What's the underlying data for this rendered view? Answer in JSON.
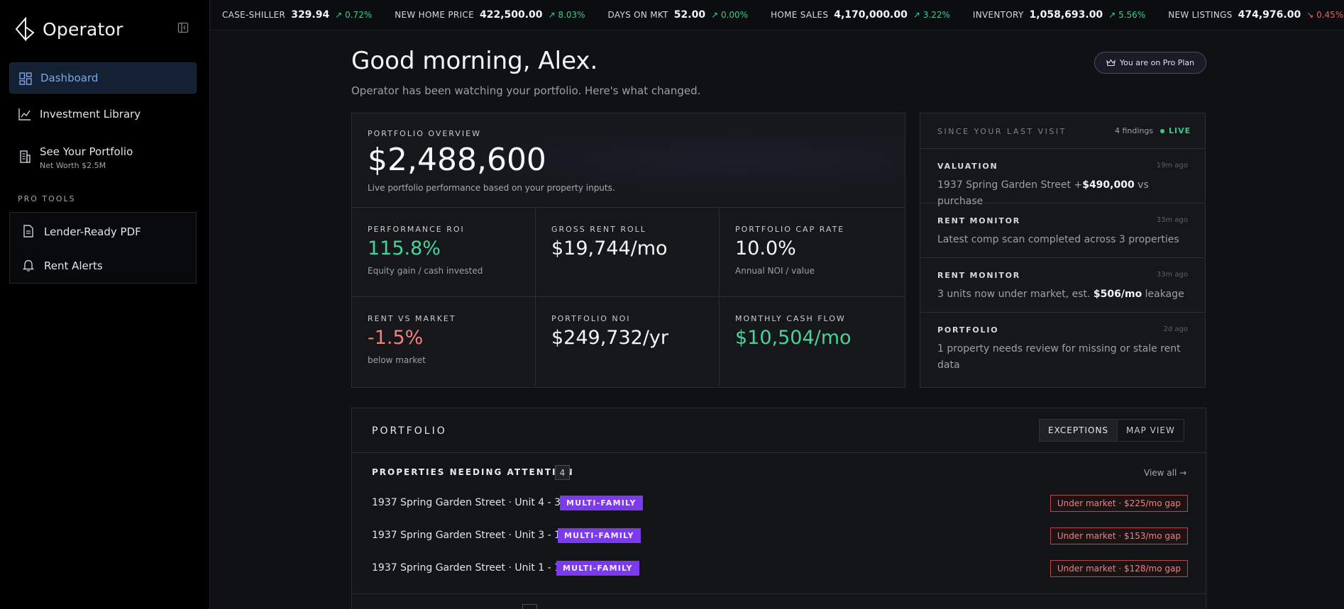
{
  "app": {
    "name": "Operator"
  },
  "sidebar": {
    "items": [
      {
        "label": "Dashboard",
        "icon": "dashboard-icon"
      },
      {
        "label": "Investment Library",
        "icon": "chart-line-icon"
      },
      {
        "label": "See Your Portfolio",
        "sub": "Net Worth $2.5M",
        "icon": "building-icon"
      }
    ],
    "pro_tools_title": "PRO TOOLS",
    "pro_tools": [
      {
        "label": "Lender-Ready PDF",
        "icon": "document-icon"
      },
      {
        "label": "Rent Alerts",
        "icon": "bell-icon"
      }
    ]
  },
  "ticker": [
    {
      "name": "CASE-SHILLER",
      "value": "329.94",
      "change": "0.72%",
      "direction": "up"
    },
    {
      "name": "NEW HOME PRICE",
      "value": "422,500.00",
      "change": "8.03%",
      "direction": "up"
    },
    {
      "name": "DAYS ON MKT",
      "value": "52.00",
      "change": "0.00%",
      "direction": "up"
    },
    {
      "name": "HOME SALES",
      "value": "4,170,000.00",
      "change": "3.22%",
      "direction": "up"
    },
    {
      "name": "INVENTORY",
      "value": "1,058,693.00",
      "change": "5.56%",
      "direction": "up"
    },
    {
      "name": "NEW LISTINGS",
      "value": "474,976.00",
      "change": "0.45%",
      "direction": "down"
    }
  ],
  "header": {
    "greeting": "Good morning, Alex.",
    "subtitle": "Operator has been watching your portfolio. Here's what changed.",
    "plan_badge": "You are on Pro Plan"
  },
  "overview": {
    "label": "PORTFOLIO OVERVIEW",
    "value": "$2,488,600",
    "description": "Live portfolio performance based on your property inputs.",
    "metrics": [
      {
        "label": "PERFORMANCE ROI",
        "value": "115.8%",
        "sub": "Equity gain / cash invested",
        "tone": "green"
      },
      {
        "label": "GROSS RENT ROLL",
        "value": "$19,744/mo",
        "sub": "",
        "tone": "neutral"
      },
      {
        "label": "PORTFOLIO CAP RATE",
        "value": "10.0%",
        "sub": "Annual NOI / value",
        "tone": "neutral"
      },
      {
        "label": "RENT VS MARKET",
        "value": "-1.5%",
        "sub": "below market",
        "tone": "red"
      },
      {
        "label": "PORTFOLIO NOI",
        "value": "$249,732/yr",
        "sub": "",
        "tone": "neutral"
      },
      {
        "label": "MONTHLY CASH FLOW",
        "value": "$10,504/mo",
        "sub": "",
        "tone": "green"
      }
    ]
  },
  "findings": {
    "title": "SINCE YOUR LAST VISIT",
    "count": "4 findings",
    "live": "LIVE",
    "items": [
      {
        "category": "VALUATION",
        "time": "19m ago",
        "pre": "1937 Spring Garden Street +",
        "bold": "$490,000",
        "post": " vs purchase"
      },
      {
        "category": "RENT MONITOR",
        "time": "33m ago",
        "pre": "Latest comp scan completed across 3 properties",
        "bold": "",
        "post": ""
      },
      {
        "category": "RENT MONITOR",
        "time": "33m ago",
        "pre": "3 units now under market, est. ",
        "bold": "$506/mo",
        "post": " leakage"
      },
      {
        "category": "PORTFOLIO",
        "time": "2d ago",
        "pre": "1 property needs review for missing or stale rent data",
        "bold": "",
        "post": ""
      }
    ]
  },
  "portfolio": {
    "title": "PORTFOLIO",
    "tabs": [
      "EXCEPTIONS",
      "MAP VIEW"
    ],
    "attention_title": "PROPERTIES NEEDING ATTENTION",
    "attention_count": "4",
    "view_all": "View all →",
    "properties": [
      {
        "name": "1937 Spring Garden Street · Unit 4 - 3 BR",
        "tag": "MULTI-FAMILY",
        "alert": "Under market · $225/mo gap"
      },
      {
        "name": "1937 Spring Garden Street · Unit 3 - 1 BR",
        "tag": "MULTI-FAMILY",
        "alert": "Under market · $153/mo gap"
      },
      {
        "name": "1937 Spring Garden Street · Unit 1 - 1 BR",
        "tag": "MULTI-FAMILY",
        "alert": "Under market · $128/mo gap"
      }
    ]
  },
  "colors": {
    "accent": "#7ea7e6",
    "positive": "#47d49a",
    "negative": "#f08080",
    "tag": "#7c3aed"
  }
}
